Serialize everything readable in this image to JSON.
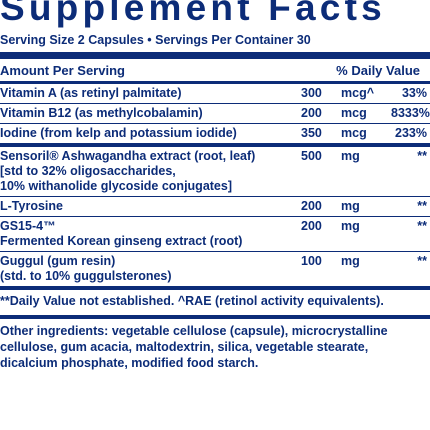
{
  "title": "Supplement Facts",
  "serving": "Serving Size 2 Capsules • Servings Per Container 30",
  "header": {
    "amount": "Amount Per Serving",
    "dv": "% Daily Value"
  },
  "rows": [
    {
      "lines": [
        "Vitamin A (as retinyl palmitate)"
      ],
      "amount": "300",
      "unit": "mcg^",
      "dv": "33%"
    },
    {
      "lines": [
        "Vitamin B12 (as methylcobalamin)"
      ],
      "amount": "200",
      "unit": "mcg",
      "dv": "8333%"
    },
    {
      "lines": [
        "Iodine (from kelp and potassium iodide)"
      ],
      "amount": "350",
      "unit": "mcg",
      "dv": "233%"
    },
    {
      "lines": [
        "Sensoril® Ashwagandha extract (root, leaf)",
        "   [std to 32% oligosaccharides,",
        "   10% withanolide glycoside conjugates]"
      ],
      "amount": "500",
      "unit": "mg",
      "dv": "**"
    },
    {
      "lines": [
        "L-Tyrosine"
      ],
      "amount": "200",
      "unit": "mg",
      "dv": "**"
    },
    {
      "lines": [
        "GS15-4™",
        "   Fermented Korean ginseng extract (root)"
      ],
      "amount": "200",
      "unit": "mg",
      "dv": "**"
    },
    {
      "lines": [
        "Guggul (gum resin)",
        "   (std. to 10% guggulsterones)"
      ],
      "amount": "100",
      "unit": "mg",
      "dv": "**"
    }
  ],
  "note": "**Daily Value not established. ^RAE (retinol activity equivalents).",
  "other": {
    "label": "Other ingredients:",
    "line1": " vegetable cellulose (capsule), microcrystalline",
    "line2": "cellulose, gum acacia, maltodextrin, silica, vegetable stearate,",
    "line3": "dicalcium phosphate, modified food starch."
  }
}
